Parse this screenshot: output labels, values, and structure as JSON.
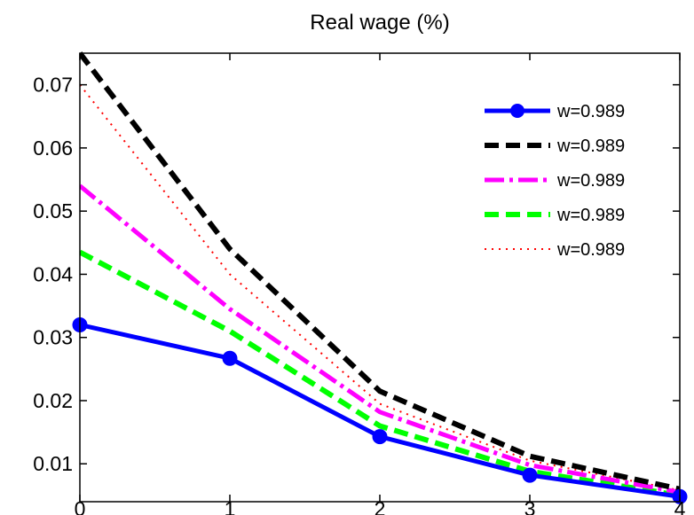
{
  "chart_data": {
    "type": "line",
    "title": "Real wage (%)",
    "xlabel": "",
    "ylabel": "",
    "x": [
      0,
      1,
      2,
      3,
      4
    ],
    "xlim": [
      0,
      4
    ],
    "ylim": [
      0.004,
      0.075
    ],
    "xticks": [
      "0",
      "1",
      "2",
      "3",
      "4"
    ],
    "yticks": [
      "0.01",
      "0.02",
      "0.03",
      "0.04",
      "0.05",
      "0.06",
      "0.07"
    ],
    "grid": false,
    "legend_position": "top-right",
    "series": [
      {
        "name": "w=0.989",
        "color": "#0000ff",
        "style": "solid-circle",
        "values": [
          0.032,
          0.0267,
          0.0143,
          0.0082,
          0.0048
        ]
      },
      {
        "name": "w=0.989",
        "color": "#000000",
        "style": "dashed",
        "values": [
          0.075,
          0.044,
          0.0215,
          0.0112,
          0.006
        ]
      },
      {
        "name": "w=0.989",
        "color": "#ff00ff",
        "style": "dashdot",
        "values": [
          0.054,
          0.0345,
          0.0182,
          0.0098,
          0.0055
        ]
      },
      {
        "name": "w=0.989",
        "color": "#00ff00",
        "style": "dashed",
        "values": [
          0.0435,
          0.031,
          0.016,
          0.0088,
          0.005
        ]
      },
      {
        "name": "w=0.989",
        "color": "#ff0000",
        "style": "dotted",
        "values": [
          0.07,
          0.04,
          0.0195,
          0.0105,
          0.0058
        ]
      }
    ]
  }
}
